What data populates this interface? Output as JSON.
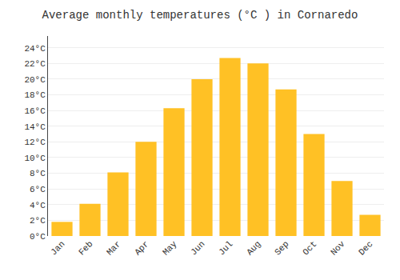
{
  "chart_data": {
    "type": "bar",
    "title": "Average monthly temperatures (°C ) in Cornaredo",
    "categories": [
      "Jan",
      "Feb",
      "Mar",
      "Apr",
      "May",
      "Jun",
      "Jul",
      "Aug",
      "Sep",
      "Oct",
      "Nov",
      "Dec"
    ],
    "values": [
      1.8,
      4.1,
      8.1,
      12.0,
      16.3,
      20.0,
      22.7,
      22.0,
      18.7,
      13.0,
      7.0,
      2.7
    ],
    "color": "#FFC125",
    "ylim": [
      0,
      25.5
    ],
    "yticks": [
      {
        "value": 0,
        "label": "0°C"
      },
      {
        "value": 2,
        "label": "2°C"
      },
      {
        "value": 4,
        "label": "4°C"
      },
      {
        "value": 6,
        "label": "6°C"
      },
      {
        "value": 8,
        "label": "8°C"
      },
      {
        "value": 10,
        "label": "10°C"
      },
      {
        "value": 12,
        "label": "12°C"
      },
      {
        "value": 14,
        "label": "14°C"
      },
      {
        "value": 16,
        "label": "16°C"
      },
      {
        "value": 18,
        "label": "18°C"
      },
      {
        "value": 20,
        "label": "20°C"
      },
      {
        "value": 22,
        "label": "22°C"
      },
      {
        "value": 24,
        "label": "24°C"
      }
    ],
    "grid": true
  }
}
